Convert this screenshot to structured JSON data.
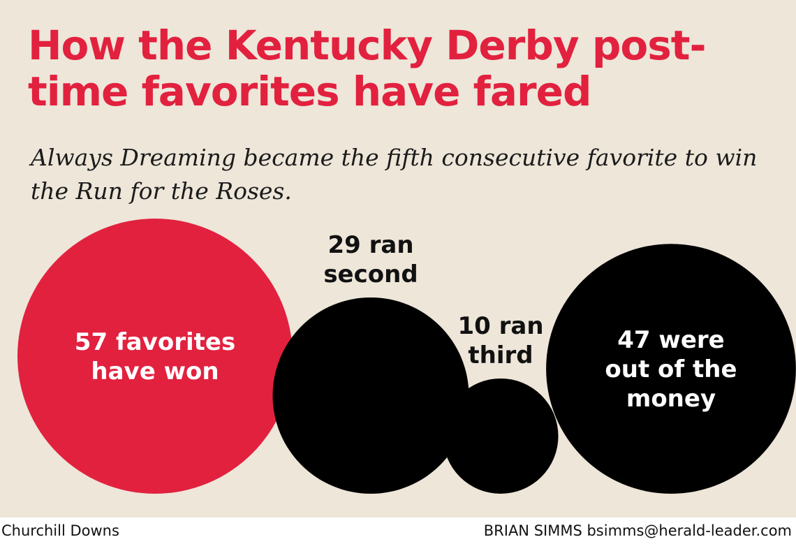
{
  "header": {
    "title": "How the Kentucky Derby post-time favorites have fared",
    "subtitle": "Always Dreaming became the fifth consecutive favorite to win the Run for the Roses."
  },
  "chart_data": {
    "type": "bubble",
    "title": "How the Kentucky Derby post-time favorites have fared",
    "subtitle": "Always Dreaming became the fifth consecutive favorite to win the Run for the Roses.",
    "categories": [
      "won",
      "second",
      "third",
      "out of the money"
    ],
    "values": [
      57,
      29,
      10,
      47
    ],
    "labels": [
      [
        "57 favorites",
        "have won"
      ],
      [
        "29 ran",
        "second"
      ],
      [
        "10 ran",
        "third"
      ],
      [
        "47 were",
        "out of the",
        "money"
      ]
    ],
    "colors": [
      "#e2213f",
      "#000000",
      "#000000",
      "#000000"
    ],
    "label_colors": [
      "#ffffff",
      "#111111",
      "#111111",
      "#ffffff"
    ],
    "label_inside": [
      true,
      false,
      false,
      true
    ]
  },
  "footer": {
    "source": "Churchill Downs",
    "credit": "BRIAN SIMMS bsimms@herald-leader.com"
  },
  "colors": {
    "background": "#ede6d9",
    "accent": "#e2213f"
  }
}
